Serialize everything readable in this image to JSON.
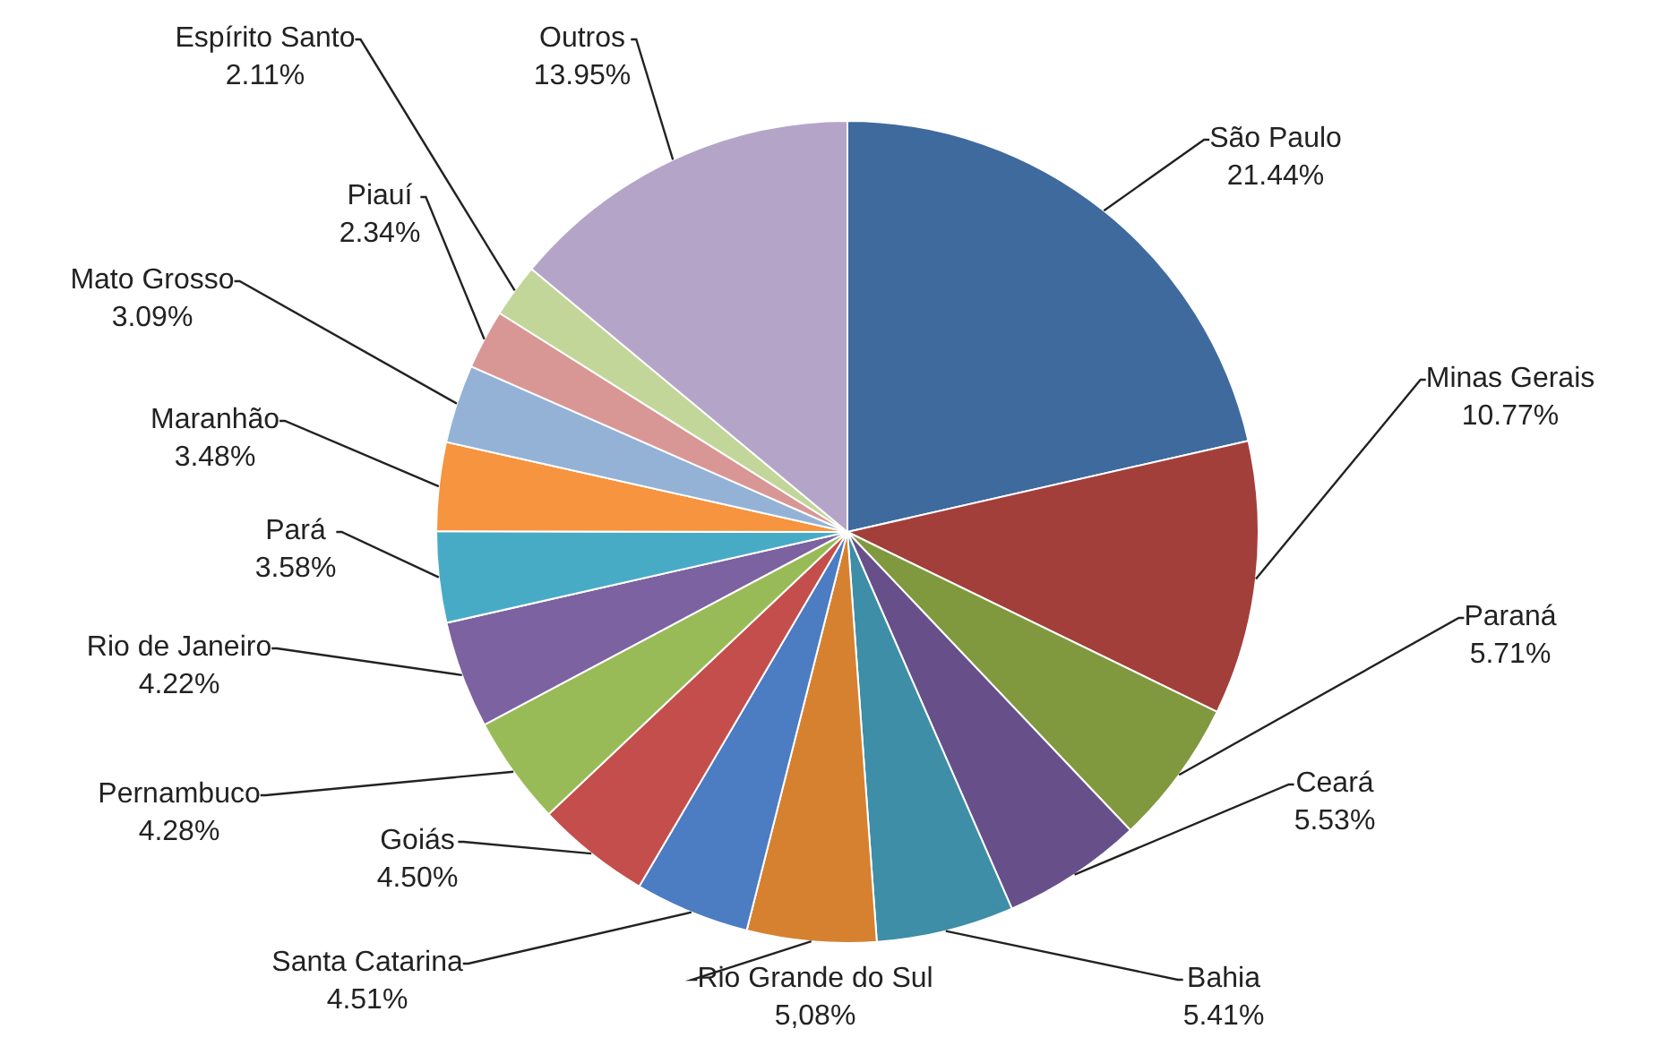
{
  "chart_data": {
    "type": "pie",
    "categories": [
      "São Paulo",
      "Minas Gerais",
      "Paraná",
      "Ceará",
      "Bahia",
      "Rio Grande do Sul",
      "Santa Catarina",
      "Goiás",
      "Pernambuco",
      "Rio de Janeiro",
      "Pará",
      "Maranhão",
      "Mato Grosso",
      "Piauí",
      "Espírito Santo",
      "Outros"
    ],
    "values": [
      21.44,
      10.77,
      5.71,
      5.53,
      5.41,
      5.08,
      4.51,
      4.5,
      4.28,
      4.22,
      3.58,
      3.48,
      3.09,
      2.34,
      2.11,
      13.95
    ],
    "value_labels": [
      "21.44%",
      "10.77%",
      "5.71%",
      "5.53%",
      "5.41%",
      "5,08%",
      "4.51%",
      "4.50%",
      "4.28%",
      "4.22%",
      "3.58%",
      "3.48%",
      "3.09%",
      "2.34%",
      "2.11%",
      "13.95%"
    ],
    "colors": [
      "#3f6a9e",
      "#a23f3b",
      "#80993f",
      "#67508a",
      "#3d8ea6",
      "#d6812f",
      "#4c7cc2",
      "#c44e4b",
      "#99bb57",
      "#7c62a0",
      "#48abc6",
      "#f6943f",
      "#94b2d6",
      "#d89795",
      "#c2d69a",
      "#b4a5c8"
    ],
    "legend": false
  }
}
